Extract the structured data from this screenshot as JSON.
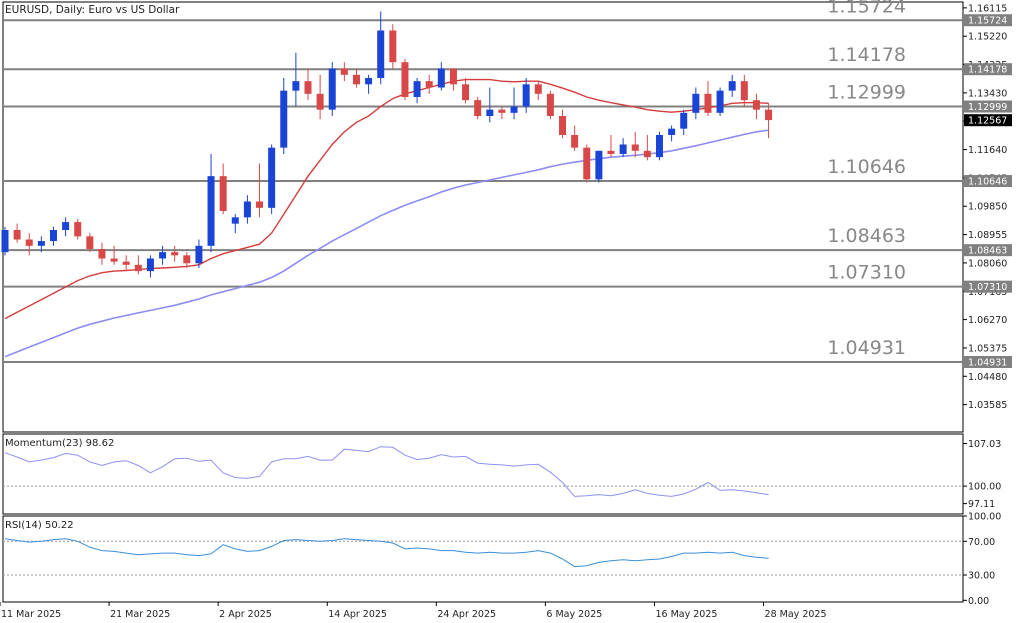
{
  "header": {
    "symbol_label": "EURUSD, Daily:  Euro vs US Dollar"
  },
  "colors": {
    "up": "#1a44d6",
    "down": "#d94848",
    "ma_short": "#d43c3c",
    "ma_long": "#8c8cf5",
    "level": "#808080",
    "momentum": "#9090f0",
    "rsi": "#3a8fd6",
    "current_price_bg": "#000000"
  },
  "chart_data": [
    {
      "type": "candlestick",
      "title": "EURUSD, Daily:  Euro vs US Dollar",
      "ylim": [
        1.0272,
        1.163
      ],
      "y_ticks": [
        "1.16115",
        "1.15220",
        "1.14325",
        "1.13430",
        "1.12535",
        "1.11640",
        "1.10745",
        "1.09850",
        "1.08955",
        "1.08060",
        "1.07165",
        "1.06270",
        "1.05375",
        "1.04480",
        "1.03585"
      ],
      "x_ticks": [
        "11 Mar 2025",
        "21 Mar 2025",
        "2 Apr 2025",
        "14 Apr 2025",
        "24 Apr 2025",
        "6 May 2025",
        "16 May 2025",
        "28 May 2025"
      ],
      "x_tick_index": [
        0,
        9,
        18,
        27,
        36,
        45,
        54,
        63
      ],
      "levels": [
        {
          "label": "1.15724",
          "value": 1.15724
        },
        {
          "label": "1.14178",
          "value": 1.14178
        },
        {
          "label": "1.12999",
          "value": 1.12999
        },
        {
          "label": "1.10646",
          "value": 1.10646
        },
        {
          "label": "1.08463",
          "value": 1.08463
        },
        {
          "label": "1.07310",
          "value": 1.0731
        },
        {
          "label": "1.04931",
          "value": 1.04931
        }
      ],
      "current_price": "1.12567",
      "candles": [
        [
          1.084,
          1.092,
          1.083,
          1.091
        ],
        [
          1.091,
          1.093,
          1.087,
          1.088
        ],
        [
          1.088,
          1.09,
          1.083,
          1.086
        ],
        [
          1.086,
          1.089,
          1.084,
          1.0875
        ],
        [
          1.0875,
          1.092,
          1.086,
          1.091
        ],
        [
          1.091,
          1.095,
          1.089,
          1.0935
        ],
        [
          1.0935,
          1.0945,
          1.088,
          1.089
        ],
        [
          1.089,
          1.09,
          1.084,
          1.085
        ],
        [
          1.085,
          1.087,
          1.08,
          1.082
        ],
        [
          1.082,
          1.086,
          1.08,
          1.081
        ],
        [
          1.081,
          1.083,
          1.078,
          1.08
        ],
        [
          1.08,
          1.083,
          1.077,
          1.078
        ],
        [
          1.078,
          1.083,
          1.076,
          1.082
        ],
        [
          1.082,
          1.086,
          1.08,
          1.084
        ],
        [
          1.084,
          1.086,
          1.081,
          1.083
        ],
        [
          1.083,
          1.084,
          1.079,
          1.0805
        ],
        [
          1.0805,
          1.088,
          1.079,
          1.086
        ],
        [
          1.086,
          1.115,
          1.084,
          1.108
        ],
        [
          1.108,
          1.112,
          1.096,
          1.097
        ],
        [
          1.093,
          1.096,
          1.09,
          1.095
        ],
        [
          1.095,
          1.102,
          1.093,
          1.1
        ],
        [
          1.1,
          1.112,
          1.095,
          1.098
        ],
        [
          1.098,
          1.118,
          1.096,
          1.117
        ],
        [
          1.117,
          1.139,
          1.115,
          1.135
        ],
        [
          1.135,
          1.147,
          1.13,
          1.138
        ],
        [
          1.138,
          1.142,
          1.132,
          1.134
        ],
        [
          1.134,
          1.14,
          1.126,
          1.129
        ],
        [
          1.129,
          1.144,
          1.127,
          1.142
        ],
        [
          1.142,
          1.144,
          1.138,
          1.14
        ],
        [
          1.14,
          1.142,
          1.136,
          1.137
        ],
        [
          1.137,
          1.14,
          1.134,
          1.139
        ],
        [
          1.139,
          1.16,
          1.137,
          1.154
        ],
        [
          1.154,
          1.156,
          1.142,
          1.144
        ],
        [
          1.144,
          1.145,
          1.132,
          1.133
        ],
        [
          1.133,
          1.139,
          1.131,
          1.138
        ],
        [
          1.138,
          1.14,
          1.134,
          1.136
        ],
        [
          1.136,
          1.144,
          1.135,
          1.142
        ],
        [
          1.142,
          1.142,
          1.135,
          1.137
        ],
        [
          1.137,
          1.139,
          1.131,
          1.132
        ],
        [
          1.132,
          1.133,
          1.126,
          1.127
        ],
        [
          1.127,
          1.136,
          1.125,
          1.129
        ],
        [
          1.129,
          1.13,
          1.126,
          1.128
        ],
        [
          1.128,
          1.136,
          1.126,
          1.13
        ],
        [
          1.13,
          1.139,
          1.128,
          1.137
        ],
        [
          1.137,
          1.138,
          1.132,
          1.134
        ],
        [
          1.134,
          1.135,
          1.126,
          1.127
        ],
        [
          1.127,
          1.129,
          1.12,
          1.121
        ],
        [
          1.121,
          1.124,
          1.116,
          1.117
        ],
        [
          1.117,
          1.118,
          1.106,
          1.107
        ],
        [
          1.107,
          1.116,
          1.106,
          1.116
        ],
        [
          1.116,
          1.121,
          1.114,
          1.115
        ],
        [
          1.115,
          1.12,
          1.114,
          1.118
        ],
        [
          1.118,
          1.122,
          1.114,
          1.116
        ],
        [
          1.116,
          1.121,
          1.113,
          1.114
        ],
        [
          1.114,
          1.122,
          1.113,
          1.121
        ],
        [
          1.121,
          1.124,
          1.119,
          1.123
        ],
        [
          1.123,
          1.129,
          1.121,
          1.128
        ],
        [
          1.128,
          1.136,
          1.126,
          1.134
        ],
        [
          1.134,
          1.138,
          1.127,
          1.128
        ],
        [
          1.128,
          1.136,
          1.127,
          1.135
        ],
        [
          1.135,
          1.14,
          1.133,
          1.138
        ],
        [
          1.138,
          1.14,
          1.13,
          1.132
        ],
        [
          1.132,
          1.134,
          1.126,
          1.129
        ],
        [
          1.129,
          1.131,
          1.12,
          1.1257
        ]
      ],
      "ma_short": [
        1.063,
        1.065,
        1.067,
        1.069,
        1.071,
        1.073,
        1.075,
        1.0765,
        1.0775,
        1.078,
        1.0782,
        1.0785,
        1.0788,
        1.079,
        1.0792,
        1.0795,
        1.08,
        1.082,
        1.0835,
        1.0845,
        1.0855,
        1.0865,
        1.09,
        1.096,
        1.102,
        1.108,
        1.113,
        1.118,
        1.122,
        1.125,
        1.127,
        1.13,
        1.1325,
        1.134,
        1.135,
        1.136,
        1.137,
        1.138,
        1.1385,
        1.1385,
        1.1385,
        1.138,
        1.1378,
        1.138,
        1.138,
        1.137,
        1.1358,
        1.1345,
        1.133,
        1.132,
        1.1312,
        1.1305,
        1.1298,
        1.129,
        1.1285,
        1.1282,
        1.1285,
        1.129,
        1.1296,
        1.1302,
        1.131,
        1.1312,
        1.1312,
        1.131
      ],
      "ma_long": [
        1.051,
        1.0525,
        1.054,
        1.0555,
        1.057,
        1.0585,
        1.06,
        1.0612,
        1.0622,
        1.0632,
        1.064,
        1.0648,
        1.0656,
        1.0664,
        1.0672,
        1.0682,
        1.0692,
        1.0705,
        1.0715,
        1.0725,
        1.0735,
        1.0745,
        1.076,
        1.078,
        1.0805,
        1.083,
        1.0852,
        1.0875,
        1.0895,
        1.0915,
        1.0935,
        1.0955,
        1.0972,
        1.0988,
        1.1002,
        1.1015,
        1.103,
        1.1042,
        1.1052,
        1.106,
        1.1068,
        1.1076,
        1.1084,
        1.1092,
        1.11,
        1.111,
        1.1118,
        1.1124,
        1.113,
        1.1135,
        1.114,
        1.1143,
        1.1146,
        1.115,
        1.1154,
        1.116,
        1.1168,
        1.1176,
        1.1185,
        1.1194,
        1.1203,
        1.1212,
        1.122,
        1.1225
      ]
    },
    {
      "type": "line",
      "title": "Momentum(23) 98.62",
      "ylim": [
        95.4,
        108.6
      ],
      "y_ticks": [
        "107.03",
        "100.00",
        "97.11"
      ],
      "dashed_level": 100.0,
      "series": [
        {
          "name": "Momentum(23)",
          "values": [
            105.5,
            104.8,
            104.0,
            104.3,
            104.7,
            105.4,
            105.1,
            104.0,
            103.4,
            104.0,
            104.2,
            103.4,
            102.2,
            103.2,
            104.5,
            104.6,
            104.1,
            104.3,
            102.2,
            101.4,
            101.3,
            101.6,
            104.0,
            104.5,
            104.5,
            104.9,
            104.3,
            104.3,
            106.1,
            105.9,
            105.7,
            106.5,
            106.4,
            105.1,
            104.4,
            104.6,
            105.2,
            104.8,
            104.9,
            103.8,
            103.6,
            103.5,
            103.3,
            103.5,
            103.6,
            102.3,
            100.6,
            98.3,
            98.4,
            98.6,
            98.4,
            98.8,
            99.4,
            98.8,
            98.5,
            98.3,
            98.7,
            99.5,
            100.6,
            99.3,
            99.4,
            99.2,
            98.9,
            98.6
          ]
        }
      ]
    },
    {
      "type": "line",
      "title": "RSI(14) 50.22",
      "ylim": [
        -2,
        100
      ],
      "y_ticks": [
        "100.00",
        "70.00",
        "30.00",
        "0.00"
      ],
      "dashed_levels": [
        70,
        30
      ],
      "series": [
        {
          "name": "RSI(14)",
          "values": [
            73,
            71,
            69,
            70,
            72,
            73,
            70,
            63,
            59,
            58,
            56,
            54,
            55,
            56,
            56,
            54,
            53,
            55,
            66,
            61,
            58,
            59,
            64,
            71,
            72,
            71,
            70,
            71,
            73,
            72,
            71,
            70,
            68,
            61,
            62,
            61,
            59,
            59,
            57,
            56,
            57,
            56,
            56,
            57,
            59,
            56,
            49,
            40,
            41,
            45,
            47,
            48,
            47,
            48,
            49,
            52,
            56,
            56,
            57,
            56,
            57,
            53,
            51,
            50
          ]
        }
      ]
    }
  ]
}
